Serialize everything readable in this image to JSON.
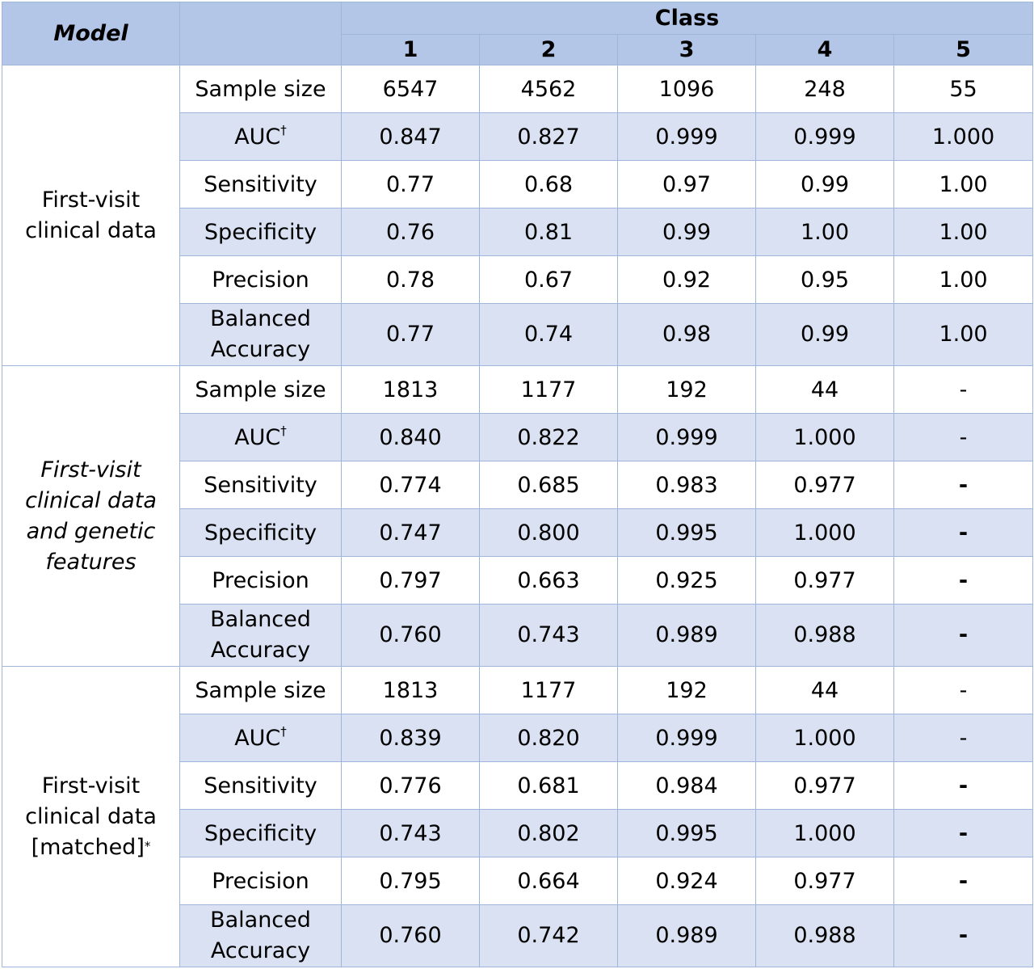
{
  "header": {
    "model_label": "Model",
    "class_label": "Class",
    "class_numbers": [
      "1",
      "2",
      "3",
      "4",
      "5"
    ]
  },
  "groups": [
    {
      "model_lines": [
        "First-visit",
        "clinical data"
      ],
      "italic": false,
      "model_suffix": "",
      "rows": [
        {
          "metric": "Sample size",
          "sup": "",
          "values": [
            "6547",
            "4562",
            "1096",
            "248",
            "55"
          ]
        },
        {
          "metric": "AUC",
          "sup": "†",
          "values": [
            "0.847",
            "0.827",
            "0.999",
            "0.999",
            "1.000"
          ]
        },
        {
          "metric": "Sensitivity",
          "sup": "",
          "values": [
            "0.77",
            "0.68",
            "0.97",
            "0.99",
            "1.00"
          ]
        },
        {
          "metric": "Specificity",
          "sup": "",
          "values": [
            "0.76",
            "0.81",
            "0.99",
            "1.00",
            "1.00"
          ]
        },
        {
          "metric": "Precision",
          "sup": "",
          "values": [
            "0.78",
            "0.67",
            "0.92",
            "0.95",
            "1.00"
          ]
        },
        {
          "metric": "Balanced Accuracy",
          "metric_lines": [
            "Balanced",
            "Accuracy"
          ],
          "sup": "",
          "values": [
            "0.77",
            "0.74",
            "0.98",
            "0.99",
            "1.00"
          ]
        }
      ]
    },
    {
      "model_lines": [
        "First-visit",
        "clinical data",
        "and genetic",
        "features"
      ],
      "italic": true,
      "model_suffix": "",
      "rows": [
        {
          "metric": "Sample size",
          "sup": "",
          "values": [
            "1813",
            "1177",
            "192",
            "44",
            "-"
          ]
        },
        {
          "metric": "AUC",
          "sup": "†",
          "values": [
            "0.840",
            "0.822",
            "0.999",
            "1.000",
            "-"
          ]
        },
        {
          "metric": "Sensitivity",
          "sup": "",
          "values": [
            "0.774",
            "0.685",
            "0.983",
            "0.977",
            "-"
          ]
        },
        {
          "metric": "Specificity",
          "sup": "",
          "values": [
            "0.747",
            "0.800",
            "0.995",
            "1.000",
            "-"
          ]
        },
        {
          "metric": "Precision",
          "sup": "",
          "values": [
            "0.797",
            "0.663",
            "0.925",
            "0.977",
            "-"
          ]
        },
        {
          "metric": "Balanced Accuracy",
          "metric_lines": [
            "Balanced",
            "Accuracy"
          ],
          "sup": "",
          "values": [
            "0.760",
            "0.743",
            "0.989",
            "0.988",
            "-"
          ]
        }
      ]
    },
    {
      "model_lines": [
        "First-visit",
        "clinical data",
        "[matched]"
      ],
      "italic": false,
      "model_suffix": "*",
      "rows": [
        {
          "metric": "Sample size",
          "sup": "",
          "values": [
            "1813",
            "1177",
            "192",
            "44",
            "-"
          ]
        },
        {
          "metric": "AUC",
          "sup": "†",
          "values": [
            "0.839",
            "0.820",
            "0.999",
            "1.000",
            "-"
          ]
        },
        {
          "metric": "Sensitivity",
          "sup": "",
          "values": [
            "0.776",
            "0.681",
            "0.984",
            "0.977",
            "-"
          ]
        },
        {
          "metric": "Specificity",
          "sup": "",
          "values": [
            "0.743",
            "0.802",
            "0.995",
            "1.000",
            "-"
          ]
        },
        {
          "metric": "Precision",
          "sup": "",
          "values": [
            "0.795",
            "0.664",
            "0.924",
            "0.977",
            "-"
          ]
        },
        {
          "metric": "Balanced Accuracy",
          "metric_lines": [
            "Balanced",
            "Accuracy"
          ],
          "sup": "",
          "values": [
            "0.760",
            "0.742",
            "0.989",
            "0.988",
            "-"
          ]
        }
      ]
    }
  ]
}
